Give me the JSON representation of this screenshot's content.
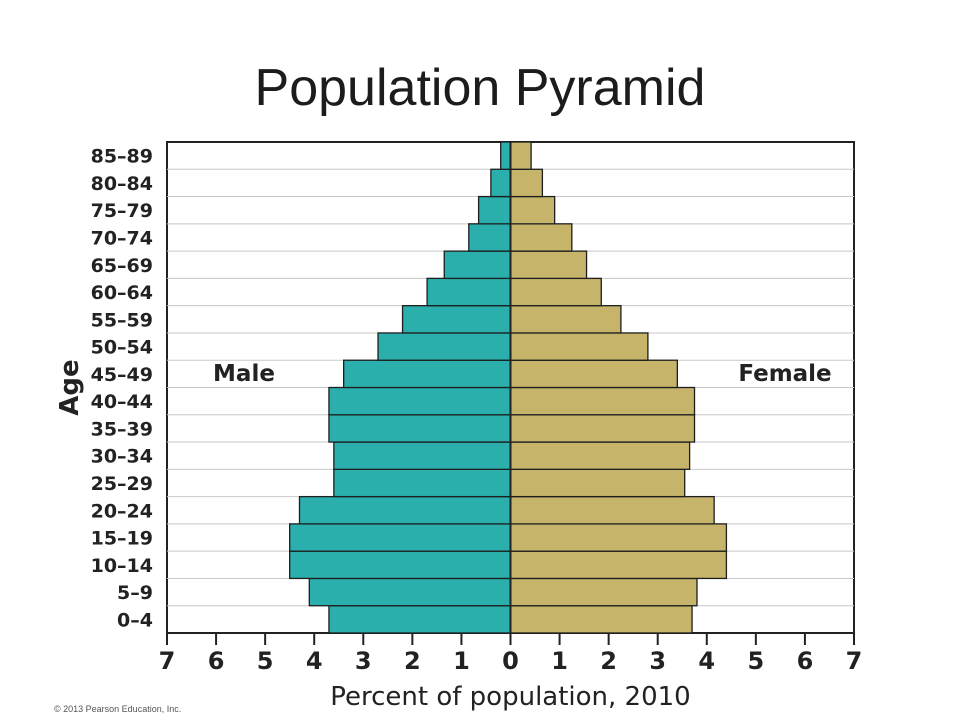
{
  "slide": {
    "title": "Population Pyramid"
  },
  "chart_data": {
    "type": "bar",
    "orientation": "horizontal",
    "layout": "population-pyramid",
    "title": "",
    "xlabel": "Percent of population, 2010",
    "ylabel": "Age",
    "xlim": [
      -7,
      7
    ],
    "xtick_labels": [
      "7",
      "6",
      "5",
      "4",
      "3",
      "2",
      "1",
      "0",
      "1",
      "2",
      "3",
      "4",
      "5",
      "6",
      "7"
    ],
    "grid": true,
    "categories": [
      "0–4",
      "5–9",
      "10–14",
      "15–19",
      "20–24",
      "25–29",
      "30–34",
      "35–39",
      "40–44",
      "45–49",
      "50–54",
      "55–59",
      "60–64",
      "65–69",
      "70–74",
      "75–79",
      "80–84",
      "85–89"
    ],
    "series": [
      {
        "name": "Male",
        "color": "#2aafac",
        "values": [
          3.7,
          4.1,
          4.5,
          4.5,
          4.3,
          3.6,
          3.6,
          3.7,
          3.7,
          3.4,
          2.7,
          2.2,
          1.7,
          1.35,
          0.85,
          0.65,
          0.4,
          0.2
        ]
      },
      {
        "name": "Female",
        "color": "#c6b46a",
        "values": [
          3.7,
          3.8,
          4.4,
          4.4,
          4.15,
          3.55,
          3.65,
          3.75,
          3.75,
          3.4,
          2.8,
          2.25,
          1.85,
          1.55,
          1.25,
          0.9,
          0.65,
          0.42
        ]
      }
    ],
    "copyright": "© 2013 Pearson Education, Inc."
  }
}
